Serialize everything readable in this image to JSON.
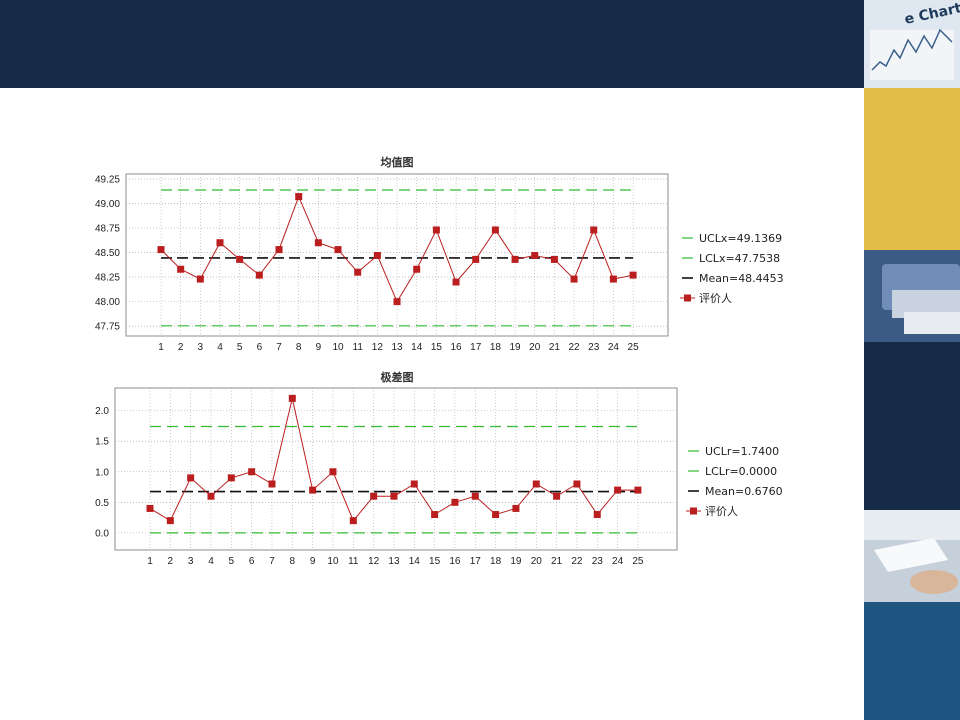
{
  "colors": {
    "banner": "#172c47",
    "data_line": "#bb1e1e",
    "marker": "#bb1e1e",
    "control_limit": "#33bb33",
    "mean": "#111111",
    "grid": "#9a9a9a",
    "side_tiles": [
      "#e8eef5",
      "#e2be48",
      "#45608a",
      "#172c47",
      "#c9d4df",
      "#1e5580"
    ]
  },
  "side_icons": [
    "chart-photo-icon",
    "gold-panel",
    "printer-photo-icon",
    "navy-panel",
    "document-hand-photo-icon",
    "blue-panel"
  ],
  "side_photo_text": "e Chart",
  "chart_data": [
    {
      "type": "line",
      "title": "均值图",
      "x": [
        1,
        2,
        3,
        4,
        5,
        6,
        7,
        8,
        9,
        10,
        11,
        12,
        13,
        14,
        15,
        16,
        17,
        18,
        19,
        20,
        21,
        22,
        23,
        24,
        25
      ],
      "ylim": [
        47.65,
        49.3
      ],
      "yticks": [
        "47.75",
        "48.00",
        "48.25",
        "48.50",
        "48.75",
        "49.00",
        "49.25"
      ],
      "grid": true,
      "legend_position": "right",
      "series": [
        {
          "name": "UCLx=49.1369",
          "kind": "limit",
          "value": 49.1369
        },
        {
          "name": "LCLx=47.7538",
          "kind": "limit",
          "value": 47.7538
        },
        {
          "name": "Mean=48.4453",
          "kind": "mean",
          "value": 48.4453
        },
        {
          "name": "评价人",
          "kind": "data",
          "values": [
            48.53,
            48.33,
            48.23,
            48.6,
            48.43,
            48.27,
            48.53,
            49.07,
            48.6,
            48.53,
            48.3,
            48.47,
            48.0,
            48.33,
            48.73,
            48.2,
            48.43,
            48.73,
            48.43,
            48.47,
            48.43,
            48.23,
            48.73,
            48.23,
            48.27
          ]
        }
      ]
    },
    {
      "type": "line",
      "title": "极差图",
      "x": [
        1,
        2,
        3,
        4,
        5,
        6,
        7,
        8,
        9,
        10,
        11,
        12,
        13,
        14,
        15,
        16,
        17,
        18,
        19,
        20,
        21,
        22,
        23,
        24,
        25
      ],
      "ylim": [
        -0.28,
        2.37
      ],
      "yticks": [
        "0.0",
        "0.5",
        "1.0",
        "1.5",
        "2.0"
      ],
      "grid": true,
      "legend_position": "right",
      "series": [
        {
          "name": "UCLr=1.7400",
          "kind": "limit",
          "value": 1.74
        },
        {
          "name": "LCLr=0.0000",
          "kind": "limit",
          "value": 0.0
        },
        {
          "name": "Mean=0.6760",
          "kind": "mean",
          "value": 0.676
        },
        {
          "name": "评价人",
          "kind": "data",
          "values": [
            0.4,
            0.2,
            0.9,
            0.6,
            0.9,
            1.0,
            0.8,
            2.2,
            0.7,
            1.0,
            0.2,
            0.6,
            0.6,
            0.8,
            0.3,
            0.5,
            0.6,
            0.3,
            0.4,
            0.8,
            0.6,
            0.8,
            0.3,
            0.7,
            0.7
          ]
        }
      ]
    }
  ]
}
